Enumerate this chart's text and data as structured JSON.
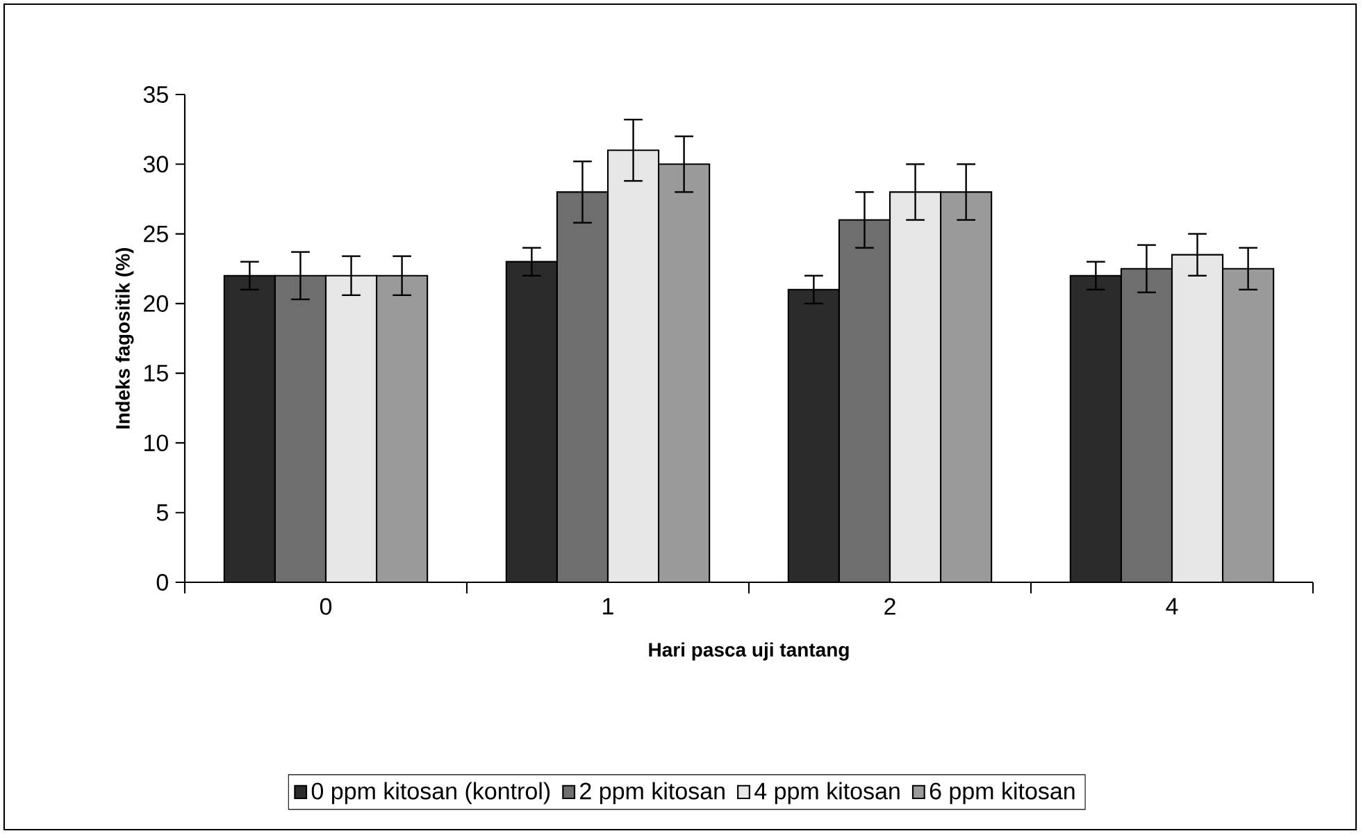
{
  "chart_data": {
    "type": "bar",
    "xlabel": "Hari pasca uji tantang",
    "ylabel": "Indeks fagositik (%)",
    "categories": [
      "0",
      "1",
      "2",
      "4"
    ],
    "series": [
      {
        "name": "0 ppm kitosan (kontrol)",
        "color": "#2b2b2b",
        "values": [
          22,
          23,
          21,
          22
        ],
        "errors": [
          1,
          1,
          1,
          1
        ]
      },
      {
        "name": "2 ppm kitosan",
        "color": "#6e6e6e",
        "values": [
          22,
          28,
          26,
          22.5
        ],
        "errors": [
          1.7,
          2.2,
          2,
          1.7
        ]
      },
      {
        "name": "4 ppm kitosan",
        "color": "#e6e6e6",
        "values": [
          22,
          31,
          28,
          23.5
        ],
        "errors": [
          1.4,
          2.2,
          2,
          1.5
        ]
      },
      {
        "name": "6 ppm kitosan",
        "color": "#9a9a9a",
        "values": [
          22,
          30,
          28,
          22.5
        ],
        "errors": [
          1.4,
          2,
          2,
          1.5
        ]
      }
    ],
    "ylim": [
      0,
      35
    ],
    "yticks": [
      0,
      5,
      10,
      15,
      20,
      25,
      30,
      35
    ],
    "legend": "bottom",
    "grid": false
  }
}
